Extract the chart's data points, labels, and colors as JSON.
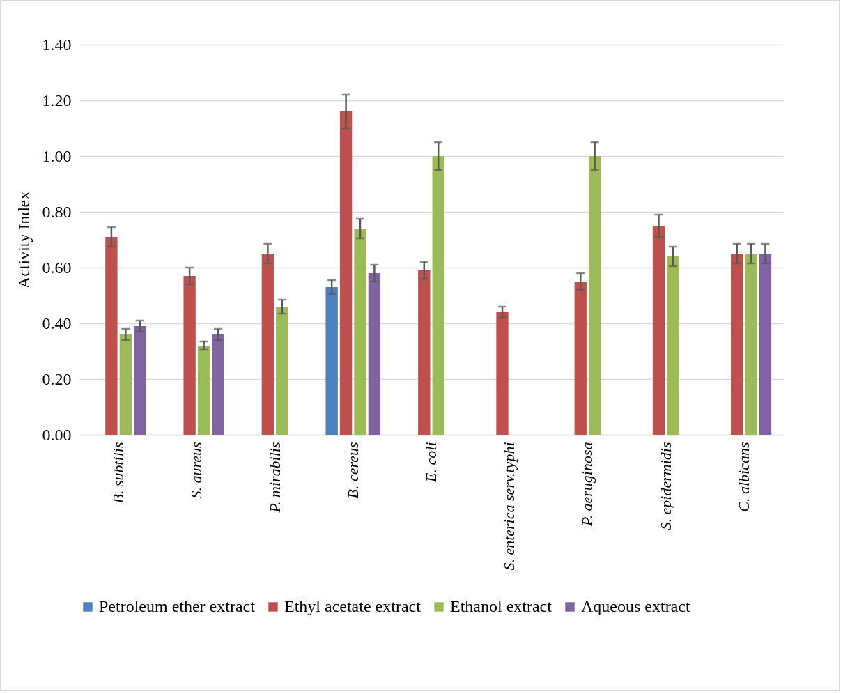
{
  "chart_data": {
    "type": "bar",
    "ylabel": "Activity Index",
    "categories": [
      "B. subtilis",
      "S. aureus",
      "P. mirabilis",
      "B. cereus",
      "E. coli",
      "S. enterica serv.typhi",
      "P. aeruginosa",
      "S. epidermidis",
      "C. albicans"
    ],
    "series": [
      {
        "name": "Petroleum ether extract",
        "color": "#4f81bd",
        "values": [
          0,
          0,
          0,
          0.53,
          0,
          0,
          0,
          0,
          0
        ],
        "errors": [
          null,
          null,
          null,
          0.025,
          null,
          null,
          null,
          null,
          null
        ]
      },
      {
        "name": "Ethyl acetate extract",
        "color": "#c0504d",
        "values": [
          0.71,
          0.57,
          0.65,
          1.16,
          0.59,
          0.44,
          0.55,
          0.75,
          0.65
        ],
        "errors": [
          0.035,
          0.03,
          0.035,
          0.06,
          0.03,
          0.02,
          0.03,
          0.04,
          0.035
        ]
      },
      {
        "name": "Ethanol extract",
        "color": "#9bbb59",
        "values": [
          0.36,
          0.32,
          0.46,
          0.74,
          1.0,
          0,
          1.0,
          0.64,
          0.65
        ],
        "errors": [
          0.02,
          0.015,
          0.025,
          0.035,
          0.05,
          null,
          0.05,
          0.035,
          0.035
        ]
      },
      {
        "name": "Aqueous extract",
        "color": "#8064a2",
        "values": [
          0.39,
          0.36,
          0,
          0.58,
          0,
          0,
          0,
          0,
          0.65
        ],
        "errors": [
          0.02,
          0.02,
          null,
          0.03,
          null,
          null,
          null,
          null,
          0.035
        ]
      }
    ],
    "ylim": [
      0,
      1.4
    ],
    "yticks": [
      {
        "value": 0,
        "label": "0.00"
      },
      {
        "value": 0.2,
        "label": "0.20"
      },
      {
        "value": 0.4,
        "label": "0.40"
      },
      {
        "value": 0.6,
        "label": "0.60"
      },
      {
        "value": 0.8,
        "label": "0.80"
      },
      {
        "value": 1.0,
        "label": "1.00"
      },
      {
        "value": 1.2,
        "label": "1.20"
      },
      {
        "value": 1.4,
        "label": "1.40"
      }
    ],
    "grid": "y",
    "legend": "bottom"
  }
}
